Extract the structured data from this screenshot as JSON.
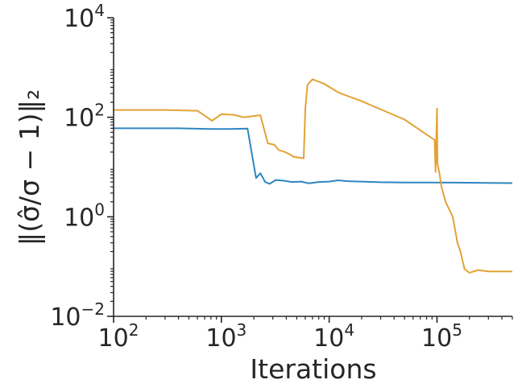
{
  "chart_data": {
    "type": "line",
    "xlabel": "Iterations",
    "ylabel": "‖(σ̂/σ − 1)‖₂",
    "x_scale": "log",
    "y_scale": "log",
    "xlim": [
      100,
      500000
    ],
    "ylim": [
      0.01,
      10000
    ],
    "x_ticks": [
      {
        "value": 100,
        "base": "10",
        "exp": "2"
      },
      {
        "value": 1000,
        "base": "10",
        "exp": "3"
      },
      {
        "value": 10000,
        "base": "10",
        "exp": "4"
      },
      {
        "value": 100000,
        "base": "10",
        "exp": "5"
      }
    ],
    "y_ticks": [
      {
        "value": 0.01,
        "base": "10",
        "exp": "−2"
      },
      {
        "value": 1,
        "base": "10",
        "exp": "0"
      },
      {
        "value": 100,
        "base": "10",
        "exp": "2"
      },
      {
        "value": 10000,
        "base": "10",
        "exp": "4"
      }
    ],
    "grid": false,
    "series": [
      {
        "color": "#2e86c1",
        "points": [
          [
            100,
            60
          ],
          [
            400,
            60
          ],
          [
            800,
            58
          ],
          [
            1200,
            58
          ],
          [
            1750,
            59
          ],
          [
            1950,
            15
          ],
          [
            2100,
            6
          ],
          [
            2300,
            7.5
          ],
          [
            2550,
            5.0
          ],
          [
            2800,
            4.6
          ],
          [
            3200,
            5.5
          ],
          [
            3800,
            5.3
          ],
          [
            4500,
            5.0
          ],
          [
            5500,
            5.1
          ],
          [
            6500,
            4.7
          ],
          [
            8000,
            5.0
          ],
          [
            10000,
            5.1
          ],
          [
            12000,
            5.4
          ],
          [
            15000,
            5.2
          ],
          [
            20000,
            5.1
          ],
          [
            30000,
            4.95
          ],
          [
            50000,
            4.9
          ],
          [
            80000,
            4.9
          ],
          [
            150000,
            4.85
          ],
          [
            300000,
            4.8
          ],
          [
            500000,
            4.75
          ]
        ]
      },
      {
        "color": "#e3a235",
        "points": [
          [
            100,
            140
          ],
          [
            300,
            140
          ],
          [
            600,
            135
          ],
          [
            820,
            85
          ],
          [
            1000,
            115
          ],
          [
            1300,
            112
          ],
          [
            1600,
            100
          ],
          [
            2300,
            110
          ],
          [
            2700,
            30
          ],
          [
            3100,
            28
          ],
          [
            3400,
            22
          ],
          [
            3900,
            20
          ],
          [
            4300,
            18
          ],
          [
            4700,
            16
          ],
          [
            5200,
            15.5
          ],
          [
            5800,
            15
          ],
          [
            6000,
            150
          ],
          [
            6300,
            450
          ],
          [
            7000,
            580
          ],
          [
            9000,
            470
          ],
          [
            12000,
            320
          ],
          [
            14000,
            280
          ],
          [
            20000,
            210
          ],
          [
            50000,
            90
          ],
          [
            95000,
            35
          ],
          [
            97000,
            8
          ],
          [
            100000,
            150
          ],
          [
            101000,
            12
          ],
          [
            106000,
            7
          ],
          [
            110000,
            4
          ],
          [
            120000,
            2
          ],
          [
            140000,
            1
          ],
          [
            155000,
            0.3
          ],
          [
            165000,
            0.2
          ],
          [
            180000,
            0.09
          ],
          [
            200000,
            0.075
          ],
          [
            240000,
            0.085
          ],
          [
            300000,
            0.08
          ],
          [
            400000,
            0.08
          ],
          [
            500000,
            0.08
          ]
        ]
      }
    ]
  }
}
